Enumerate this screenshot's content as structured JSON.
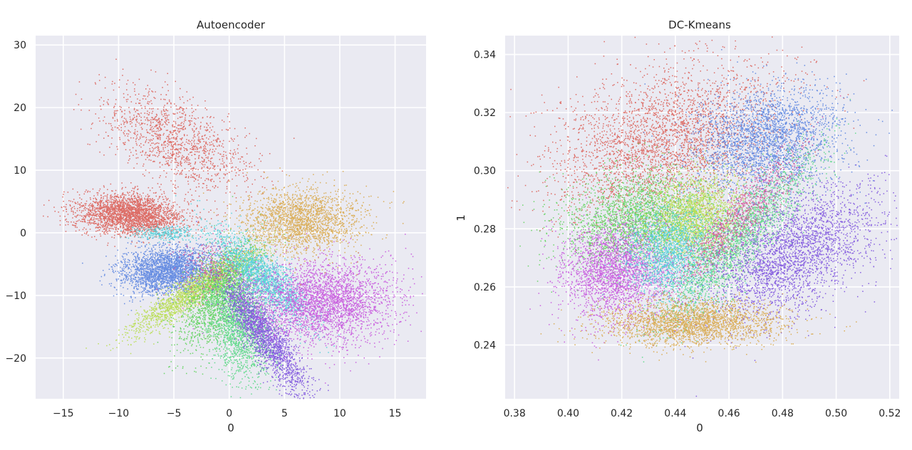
{
  "chart_data": [
    {
      "type": "scatter",
      "title": "Autoencoder",
      "xlabel": "0",
      "ylabel": "",
      "xlim": [
        -17.5,
        17.8
      ],
      "ylim": [
        -26.5,
        31.5
      ],
      "xticks": [
        -15,
        -10,
        -5,
        0,
        5,
        10,
        15
      ],
      "yticks": [
        -20,
        -10,
        0,
        10,
        20,
        30
      ],
      "xtick_labels": [
        "−15",
        "−10",
        "−5",
        "0",
        "5",
        "10",
        "15"
      ],
      "ytick_labels": [
        "−20",
        "−10",
        "0",
        "10",
        "20",
        "30"
      ],
      "grid": true,
      "background": "#eaeaf2",
      "clusters": [
        {
          "color": "#db5f57",
          "points": 2600,
          "center": [
            -9,
            3
          ],
          "spread": [
            2.4,
            1.6
          ],
          "rotation": -10
        },
        {
          "color": "#db5f57",
          "points": 1300,
          "center": [
            -5,
            15
          ],
          "spread": [
            2.4,
            4.5
          ],
          "rotation": 35
        },
        {
          "color": "#5a84e0",
          "points": 2600,
          "center": [
            -5.5,
            -6
          ],
          "spread": [
            2.2,
            1.8
          ],
          "rotation": 25
        },
        {
          "color": "#b8de4f",
          "points": 2000,
          "center": [
            -3,
            -9
          ],
          "spread": [
            0.9,
            4.2
          ],
          "rotation": -40
        },
        {
          "color": "#5fd35b",
          "points": 1600,
          "center": [
            -1,
            -10
          ],
          "spread": [
            1.4,
            4.5
          ],
          "rotation": -15
        },
        {
          "color": "#59d885",
          "points": 1800,
          "center": [
            1,
            -15
          ],
          "spread": [
            1.4,
            4.2
          ],
          "rotation": 5
        },
        {
          "color": "#7d52de",
          "points": 2000,
          "center": [
            3,
            -16
          ],
          "spread": [
            0.9,
            5
          ],
          "rotation": 20
        },
        {
          "color": "#4fd0d8",
          "points": 1800,
          "center": [
            3,
            -7
          ],
          "spread": [
            1.1,
            4.2
          ],
          "rotation": 30
        },
        {
          "color": "#c755dd",
          "points": 3000,
          "center": [
            8.5,
            -11
          ],
          "spread": [
            3.2,
            3.3
          ],
          "rotation": -20
        },
        {
          "color": "#d9a84a",
          "points": 2000,
          "center": [
            6.5,
            2
          ],
          "spread": [
            2.6,
            2.5
          ],
          "rotation": 25
        },
        {
          "color": "#d9559a",
          "points": 250,
          "center": [
            -2,
            -5
          ],
          "spread": [
            1.5,
            2.5
          ],
          "rotation": 0
        },
        {
          "color": "#4fd0d8",
          "points": 300,
          "center": [
            -6,
            0
          ],
          "spread": [
            1.5,
            0.6
          ],
          "rotation": 0
        }
      ]
    },
    {
      "type": "scatter",
      "title": "DC-Kmeans",
      "xlabel": "0",
      "ylabel": "1",
      "xlim": [
        0.3765,
        0.5235
      ],
      "ylim": [
        0.2215,
        0.3465
      ],
      "xticks": [
        0.38,
        0.4,
        0.42,
        0.44,
        0.46,
        0.48,
        0.5,
        0.52
      ],
      "yticks": [
        0.24,
        0.26,
        0.28,
        0.3,
        0.32,
        0.34
      ],
      "xtick_labels": [
        "0.38",
        "0.40",
        "0.42",
        "0.44",
        "0.46",
        "0.48",
        "0.50",
        "0.52"
      ],
      "ytick_labels": [
        "0.24",
        "0.26",
        "0.28",
        "0.30",
        "0.32",
        "0.34"
      ],
      "grid": true,
      "background": "#eaeaf2",
      "clusters": [
        {
          "color": "#db5f57",
          "points": 3200,
          "center": [
            0.436,
            0.31
          ],
          "spread": [
            0.022,
            0.012
          ],
          "rotation": 20
        },
        {
          "color": "#5a84e0",
          "points": 2600,
          "center": [
            0.474,
            0.311
          ],
          "spread": [
            0.014,
            0.009
          ],
          "rotation": 10
        },
        {
          "color": "#5fd35b",
          "points": 2400,
          "center": [
            0.425,
            0.283
          ],
          "spread": [
            0.014,
            0.008
          ],
          "rotation": 10
        },
        {
          "color": "#b8de4f",
          "points": 2000,
          "center": [
            0.447,
            0.284
          ],
          "spread": [
            0.009,
            0.007
          ],
          "rotation": 15
        },
        {
          "color": "#c755dd",
          "points": 2400,
          "center": [
            0.418,
            0.265
          ],
          "spread": [
            0.01,
            0.008
          ],
          "rotation": 5
        },
        {
          "color": "#4fd0d8",
          "points": 1600,
          "center": [
            0.438,
            0.272
          ],
          "spread": [
            0.008,
            0.008
          ],
          "rotation": 25
        },
        {
          "color": "#59d885",
          "points": 2200,
          "center": [
            0.463,
            0.276
          ],
          "spread": [
            0.02,
            0.005
          ],
          "rotation": 45
        },
        {
          "color": "#d9559a",
          "points": 900,
          "center": [
            0.463,
            0.283
          ],
          "spread": [
            0.016,
            0.004
          ],
          "rotation": 45
        },
        {
          "color": "#7d52de",
          "points": 2800,
          "center": [
            0.484,
            0.272
          ],
          "spread": [
            0.017,
            0.009
          ],
          "rotation": 28
        },
        {
          "color": "#d9a84a",
          "points": 2400,
          "center": [
            0.447,
            0.248
          ],
          "spread": [
            0.017,
            0.004
          ],
          "rotation": 0
        }
      ]
    }
  ]
}
